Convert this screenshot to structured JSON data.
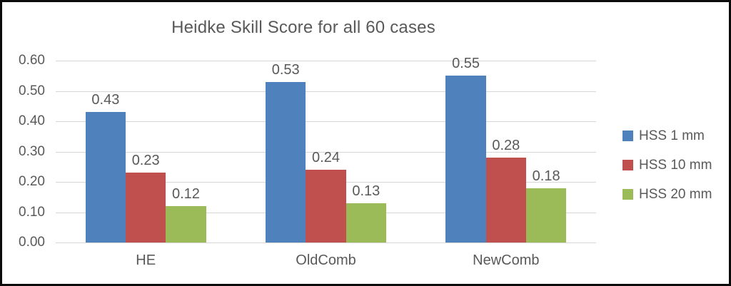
{
  "chart_data": {
    "type": "bar",
    "title": "Heidke Skill Score for all 60 cases",
    "categories": [
      "HE",
      "OldComb",
      "NewComb"
    ],
    "series": [
      {
        "name": "HSS 1 mm",
        "color": "#4F81BD",
        "values": [
          0.43,
          0.53,
          0.55
        ]
      },
      {
        "name": "HSS 10 mm",
        "color": "#C0504D",
        "values": [
          0.23,
          0.24,
          0.28
        ]
      },
      {
        "name": "HSS 20 mm",
        "color": "#9BBB59",
        "values": [
          0.12,
          0.13,
          0.18
        ]
      }
    ],
    "ylim": [
      0.0,
      0.6
    ],
    "ytick_step": 0.1,
    "ytick_labels": [
      "0.00",
      "0.10",
      "0.20",
      "0.30",
      "0.40",
      "0.50",
      "0.60"
    ],
    "grid": true,
    "legend_position": "right",
    "data_labels": true,
    "label_decimals": 2
  },
  "style": {
    "text_color": "#595959",
    "gridline_color": "#D6D6D6",
    "background": "#FFFFFF",
    "border_color": "#0B0B0B"
  }
}
